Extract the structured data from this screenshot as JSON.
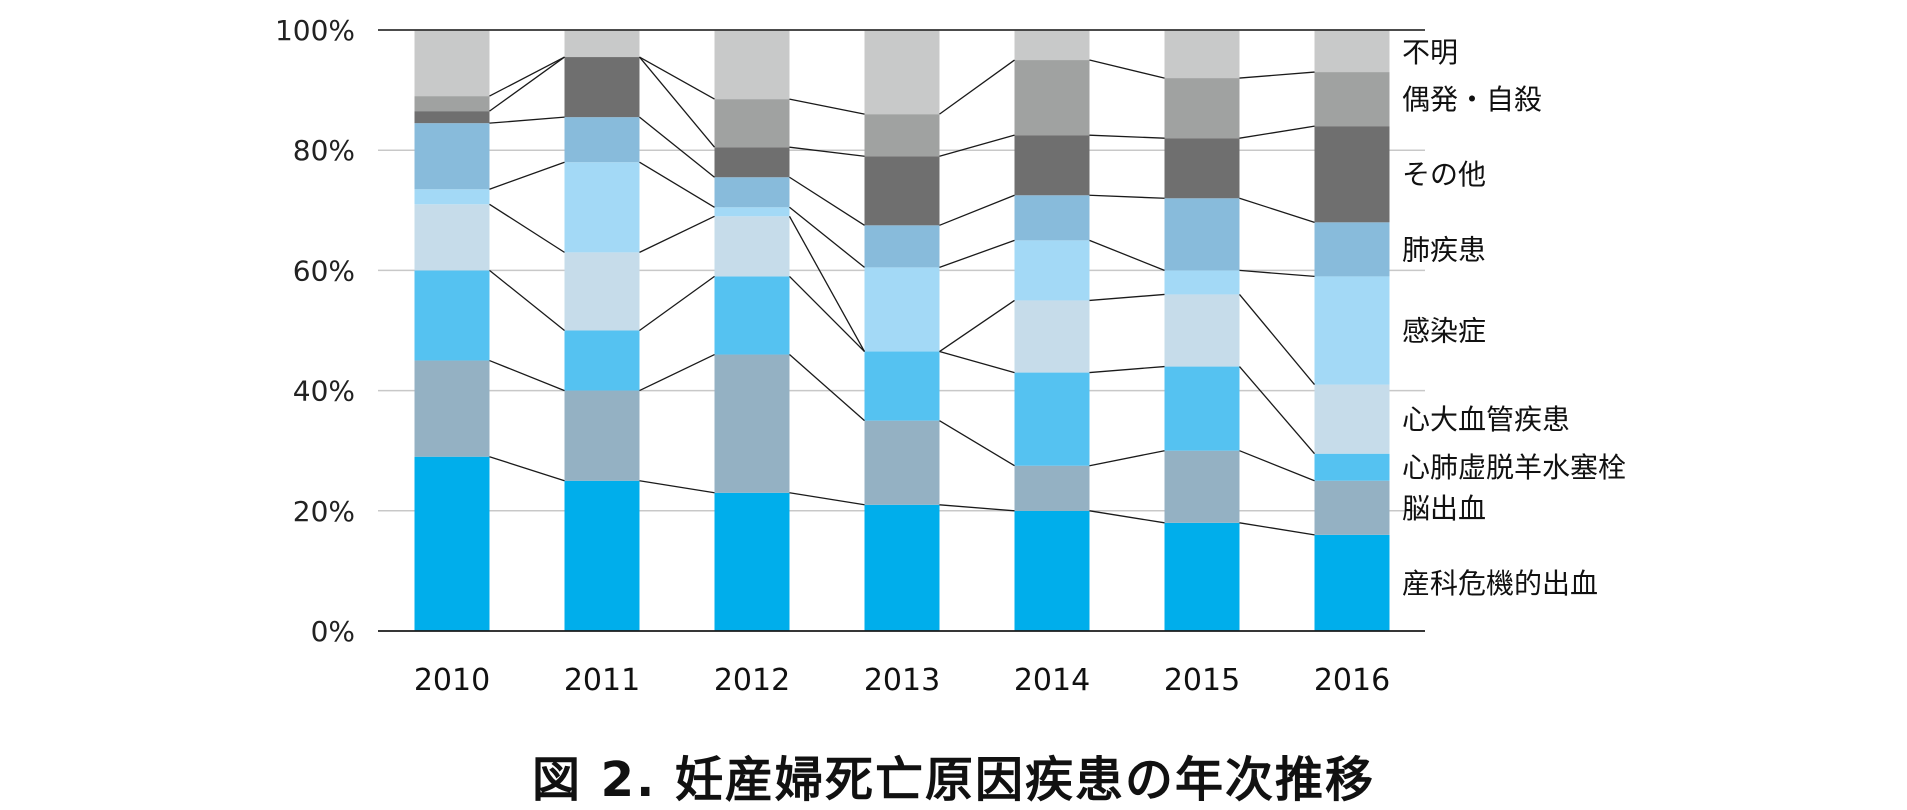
{
  "chart_data": {
    "type": "bar",
    "stacked": true,
    "title": "",
    "caption": "図 2.  妊産婦死亡原因疾患の年次推移",
    "xlabel": "",
    "ylabel": "",
    "ylim": [
      0,
      100
    ],
    "y_ticks": [
      "0%",
      "20%",
      "40%",
      "60%",
      "80%",
      "100%"
    ],
    "y_tick_values": [
      0,
      20,
      40,
      60,
      80,
      100
    ],
    "grid": true,
    "legend": "right",
    "categories": [
      "2010",
      "2011",
      "2012",
      "2013",
      "2014",
      "2015",
      "2016"
    ],
    "series": [
      {
        "name": "産科危機的出血",
        "color": "#00AEEB",
        "values": [
          29,
          25,
          23,
          21,
          20,
          18,
          16
        ]
      },
      {
        "name": "脳出血",
        "color": "#94B1C3",
        "values": [
          16,
          15,
          23,
          14,
          7.5,
          12,
          9
        ]
      },
      {
        "name": "心肺虚脱羊水塞栓",
        "color": "#55C2F1",
        "values": [
          15,
          10,
          13,
          11.5,
          15.5,
          14,
          4.5
        ]
      },
      {
        "name": "心大血管疾患",
        "color": "#C6DCEA",
        "values": [
          11,
          13,
          10,
          0,
          12,
          12,
          11.5
        ]
      },
      {
        "name": "感染症",
        "color": "#A3D9F6",
        "values": [
          2.5,
          15,
          1.5,
          14,
          10,
          4,
          18
        ]
      },
      {
        "name": "肺疾患",
        "color": "#88BBDB",
        "values": [
          11,
          7.5,
          5,
          7,
          7.5,
          12,
          9
        ]
      },
      {
        "name": "その他",
        "color": "#6F6F6F",
        "values": [
          2,
          10,
          5,
          11.5,
          10,
          10,
          16
        ]
      },
      {
        "name": "偶発・自殺",
        "color": "#A0A2A1",
        "values": [
          2.5,
          0,
          8,
          7,
          12.5,
          10,
          9
        ]
      },
      {
        "name": "不明",
        "color": "#C8C9C9",
        "values": [
          11,
          4.5,
          11.5,
          14,
          5,
          8,
          7
        ]
      }
    ]
  }
}
